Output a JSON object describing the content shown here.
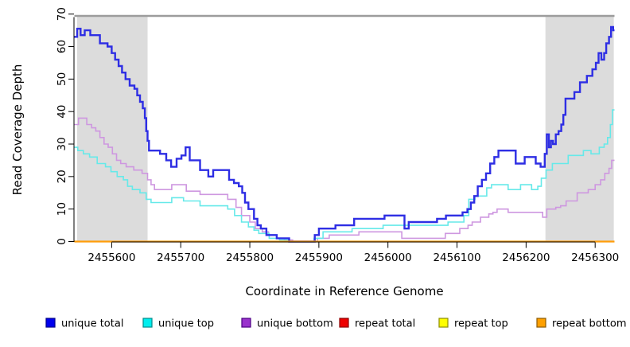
{
  "chart_data": {
    "type": "line",
    "step": true,
    "title": "",
    "xlabel": "Coordinate in Reference Genome",
    "ylabel": "Read Coverage Depth",
    "xlim": [
      2455546,
      2456328
    ],
    "ylim": [
      0,
      70
    ],
    "x_ticks": [
      2455600,
      2455700,
      2455800,
      2455900,
      2456000,
      2456100,
      2456200,
      2456300
    ],
    "x_tick_labels": [
      "2455600",
      "2455700",
      "2455800",
      "2455900",
      "2456000",
      "2456100",
      "2456200",
      "2456300"
    ],
    "y_ticks": [
      0,
      10,
      20,
      30,
      40,
      50,
      60,
      70
    ],
    "y_tick_labels": [
      "0",
      "10",
      "20",
      "30",
      "40",
      "50",
      "60",
      "70"
    ],
    "grid": false,
    "legend_position": "bottom",
    "shade_color": "#dcdcdc",
    "top_border_color": "#9c9c9c",
    "shaded_regions": [
      {
        "from": 2455550,
        "to": 2455652
      },
      {
        "from": 2456228,
        "to": 2456327
      }
    ],
    "series": [
      {
        "name": "unique bottom",
        "color": "#ce97e0",
        "width": 1.6,
        "points": [
          [
            2455546,
            36
          ],
          [
            2455552,
            38
          ],
          [
            2455564,
            36
          ],
          [
            2455571,
            35
          ],
          [
            2455577,
            34
          ],
          [
            2455583,
            32
          ],
          [
            2455589,
            30
          ],
          [
            2455595,
            29
          ],
          [
            2455601,
            27
          ],
          [
            2455607,
            25
          ],
          [
            2455613,
            24
          ],
          [
            2455621,
            23
          ],
          [
            2455632,
            22
          ],
          [
            2455644,
            21
          ],
          [
            2455652,
            19
          ],
          [
            2455657,
            17.5
          ],
          [
            2455662,
            16
          ],
          [
            2455687,
            17.5
          ],
          [
            2455708,
            15.5
          ],
          [
            2455728,
            14.5
          ],
          [
            2455768,
            13
          ],
          [
            2455780,
            10.5
          ],
          [
            2455788,
            8
          ],
          [
            2455800,
            6
          ],
          [
            2455808,
            4
          ],
          [
            2455818,
            3
          ],
          [
            2455827,
            2
          ],
          [
            2455839,
            1
          ],
          [
            2455850,
            0.5
          ],
          [
            2455862,
            0
          ],
          [
            2455898,
            1
          ],
          [
            2455915,
            2
          ],
          [
            2455958,
            3
          ],
          [
            2456020,
            1
          ],
          [
            2456083,
            2.5
          ],
          [
            2456104,
            4
          ],
          [
            2456116,
            5
          ],
          [
            2456122,
            6
          ],
          [
            2456134,
            7.5
          ],
          [
            2456146,
            8.5
          ],
          [
            2456152,
            9
          ],
          [
            2456158,
            10
          ],
          [
            2456174,
            9
          ],
          [
            2456224,
            7.5
          ],
          [
            2456230,
            10
          ],
          [
            2456243,
            10.5
          ],
          [
            2456250,
            11
          ],
          [
            2456258,
            12.5
          ],
          [
            2456274,
            15
          ],
          [
            2456290,
            16
          ],
          [
            2456300,
            17.5
          ],
          [
            2456308,
            19
          ],
          [
            2456314,
            21
          ],
          [
            2456320,
            22.5
          ],
          [
            2456324,
            25
          ]
        ]
      },
      {
        "name": "unique top",
        "color": "#66e9e9",
        "width": 1.6,
        "points": [
          [
            2455546,
            29
          ],
          [
            2455551,
            28
          ],
          [
            2455559,
            27
          ],
          [
            2455568,
            26
          ],
          [
            2455579,
            24
          ],
          [
            2455591,
            23
          ],
          [
            2455599,
            21.5
          ],
          [
            2455608,
            20
          ],
          [
            2455617,
            19
          ],
          [
            2455623,
            17
          ],
          [
            2455630,
            16
          ],
          [
            2455641,
            15
          ],
          [
            2455650,
            13
          ],
          [
            2455657,
            12
          ],
          [
            2455687,
            13.5
          ],
          [
            2455704,
            12.5
          ],
          [
            2455728,
            11
          ],
          [
            2455768,
            10
          ],
          [
            2455778,
            8
          ],
          [
            2455788,
            6
          ],
          [
            2455798,
            4.5
          ],
          [
            2455806,
            3.5
          ],
          [
            2455813,
            2.5
          ],
          [
            2455828,
            1
          ],
          [
            2455843,
            0.5
          ],
          [
            2455856,
            0
          ],
          [
            2455893,
            1
          ],
          [
            2455906,
            3
          ],
          [
            2455948,
            4
          ],
          [
            2455993,
            5
          ],
          [
            2456087,
            6
          ],
          [
            2456110,
            8
          ],
          [
            2456117,
            13
          ],
          [
            2456126,
            14
          ],
          [
            2456143,
            16.5
          ],
          [
            2456150,
            17.5
          ],
          [
            2456174,
            16
          ],
          [
            2456192,
            17.5
          ],
          [
            2456208,
            16
          ],
          [
            2456217,
            17
          ],
          [
            2456222,
            19.5
          ],
          [
            2456229,
            22
          ],
          [
            2456238,
            24
          ],
          [
            2456261,
            26.5
          ],
          [
            2456283,
            28
          ],
          [
            2456294,
            27
          ],
          [
            2456306,
            29
          ],
          [
            2456313,
            30
          ],
          [
            2456318,
            32
          ],
          [
            2456322,
            36
          ],
          [
            2456325,
            40.5
          ]
        ]
      },
      {
        "name": "unique total",
        "color": "#2e2ee4",
        "width": 2.4,
        "points": [
          [
            2455546,
            63
          ],
          [
            2455550,
            65.5
          ],
          [
            2455555,
            63.5
          ],
          [
            2455561,
            65
          ],
          [
            2455569,
            63.5
          ],
          [
            2455583,
            61
          ],
          [
            2455594,
            60
          ],
          [
            2455600,
            58
          ],
          [
            2455605,
            56
          ],
          [
            2455610,
            54
          ],
          [
            2455615,
            52
          ],
          [
            2455620,
            50
          ],
          [
            2455626,
            48
          ],
          [
            2455633,
            47
          ],
          [
            2455637,
            45
          ],
          [
            2455641,
            43
          ],
          [
            2455645,
            41
          ],
          [
            2455648,
            38
          ],
          [
            2455650,
            34
          ],
          [
            2455652,
            31
          ],
          [
            2455654,
            28
          ],
          [
            2455670,
            27
          ],
          [
            2455679,
            25
          ],
          [
            2455686,
            23
          ],
          [
            2455694,
            25.5
          ],
          [
            2455701,
            26.5
          ],
          [
            2455707,
            29
          ],
          [
            2455713,
            25
          ],
          [
            2455728,
            22
          ],
          [
            2455740,
            20
          ],
          [
            2455747,
            22
          ],
          [
            2455770,
            19
          ],
          [
            2455777,
            18
          ],
          [
            2455784,
            17
          ],
          [
            2455789,
            15
          ],
          [
            2455793,
            12
          ],
          [
            2455798,
            10
          ],
          [
            2455806,
            7
          ],
          [
            2455811,
            5
          ],
          [
            2455816,
            4
          ],
          [
            2455824,
            2
          ],
          [
            2455839,
            1
          ],
          [
            2455857,
            0
          ],
          [
            2455894,
            2
          ],
          [
            2455900,
            4
          ],
          [
            2455924,
            5
          ],
          [
            2455951,
            7
          ],
          [
            2455995,
            8
          ],
          [
            2456024,
            4
          ],
          [
            2456030,
            6
          ],
          [
            2456071,
            7
          ],
          [
            2456084,
            8
          ],
          [
            2456108,
            9
          ],
          [
            2456115,
            10
          ],
          [
            2456120,
            12
          ],
          [
            2456125,
            14
          ],
          [
            2456130,
            17
          ],
          [
            2456136,
            19
          ],
          [
            2456142,
            21
          ],
          [
            2456148,
            24
          ],
          [
            2456154,
            26
          ],
          [
            2456160,
            28
          ],
          [
            2456185,
            24
          ],
          [
            2456198,
            26
          ],
          [
            2456214,
            24
          ],
          [
            2456221,
            23
          ],
          [
            2456227,
            27
          ],
          [
            2456230,
            33
          ],
          [
            2456233,
            29
          ],
          [
            2456236,
            31
          ],
          [
            2456239,
            30
          ],
          [
            2456243,
            33
          ],
          [
            2456247,
            34
          ],
          [
            2456251,
            36
          ],
          [
            2456254,
            39
          ],
          [
            2456257,
            44
          ],
          [
            2456270,
            46
          ],
          [
            2456278,
            49
          ],
          [
            2456288,
            51
          ],
          [
            2456296,
            53
          ],
          [
            2456301,
            55
          ],
          [
            2456305,
            58
          ],
          [
            2456309,
            56
          ],
          [
            2456313,
            58
          ],
          [
            2456316,
            61
          ],
          [
            2456320,
            63
          ],
          [
            2456323,
            66
          ],
          [
            2456326,
            65
          ]
        ]
      },
      {
        "name": "repeat total",
        "color": "#e60000",
        "width": 1.6,
        "points": [
          [
            2455546,
            0
          ],
          [
            2456328,
            0
          ]
        ]
      },
      {
        "name": "repeat top",
        "color": "#ffe800",
        "width": 1.6,
        "points": [
          [
            2455546,
            0
          ],
          [
            2456328,
            0
          ]
        ]
      },
      {
        "name": "repeat bottom",
        "color": "#ff9d0a",
        "width": 2.2,
        "points": [
          [
            2455546,
            0
          ],
          [
            2456328,
            0
          ]
        ]
      }
    ],
    "legend": [
      {
        "label": "unique total",
        "fill": "#0000ee",
        "border": "#00008b"
      },
      {
        "label": "unique top",
        "fill": "#00eeee",
        "border": "#008b8b"
      },
      {
        "label": "unique bottom",
        "fill": "#9932cc",
        "border": "#4b0082"
      },
      {
        "label": "repeat total",
        "fill": "#ee0000",
        "border": "#8b0000"
      },
      {
        "label": "repeat top",
        "fill": "#ffff00",
        "border": "#8b8b00"
      },
      {
        "label": "repeat bottom",
        "fill": "#ffa000",
        "border": "#8b5a00"
      }
    ]
  }
}
